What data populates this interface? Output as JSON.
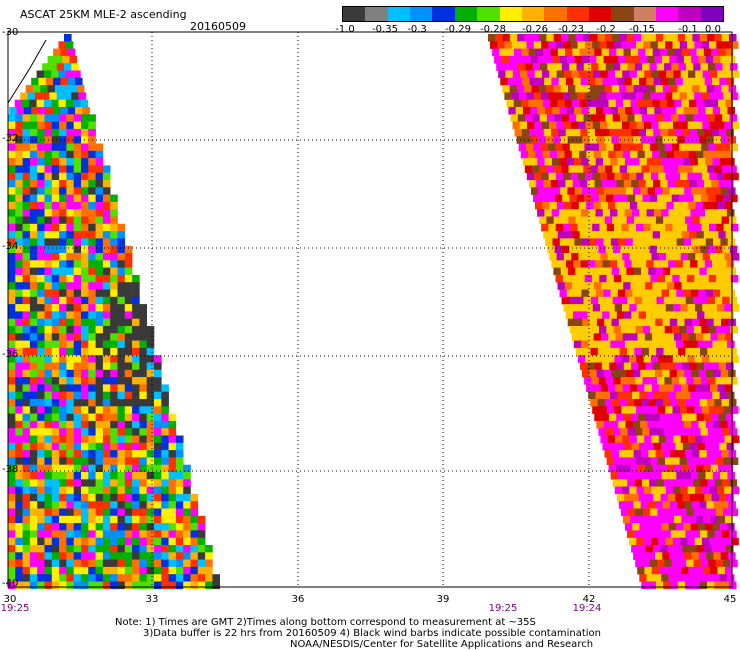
{
  "header": {
    "title": "ASCAT 25KM MLE-2 ascending",
    "date": "20160509"
  },
  "colorbar": {
    "colors": [
      "#3a3a3a",
      "#808080",
      "#00bfff",
      "#0090ff",
      "#0030e0",
      "#00b000",
      "#50e000",
      "#ffee00",
      "#ffb000",
      "#ff7000",
      "#ff3000",
      "#e00000",
      "#8b4513",
      "#d08060",
      "#ff00ff",
      "#c000c0",
      "#8000c0"
    ],
    "labels": [
      "-1.0",
      "-0.35",
      "-0.3",
      "-0.29",
      "-0.28",
      "-0.26",
      "-0.23",
      "-0.2",
      "-0.15",
      "-0.1",
      "0.0"
    ]
  },
  "axes": {
    "y_labels": [
      "-30",
      "-32",
      "-34",
      "-36",
      "-38",
      "-40"
    ],
    "x_labels": [
      "30",
      "33",
      "36",
      "39",
      "42",
      "45"
    ],
    "time_labels": [
      "19:25",
      "19:25",
      "19:24"
    ]
  },
  "swaths": {
    "left_palette": [
      "#ffee00",
      "#ff7000",
      "#ff3000",
      "#00bfff",
      "#0090ff",
      "#0030e0",
      "#00b000",
      "#50e000",
      "#ff00ff",
      "#ffb000",
      "#3a3a3a"
    ],
    "right_palette": [
      "#ff00ff",
      "#ff3000",
      "#e00000",
      "#ffcc00",
      "#c000c0",
      "#8b4513",
      "#ff7000",
      "#ff00ff",
      "#ffcc00"
    ]
  },
  "notes": [
    "Note: 1) Times are GMT 2)Times along bottom correspond to measurement at ~35S",
    "3)Data buffer is 22 hrs from 20160509 4) Black wind barbs indicate possible contamination",
    "NOAA/NESDIS/Center for Satellite Applications and Research"
  ]
}
